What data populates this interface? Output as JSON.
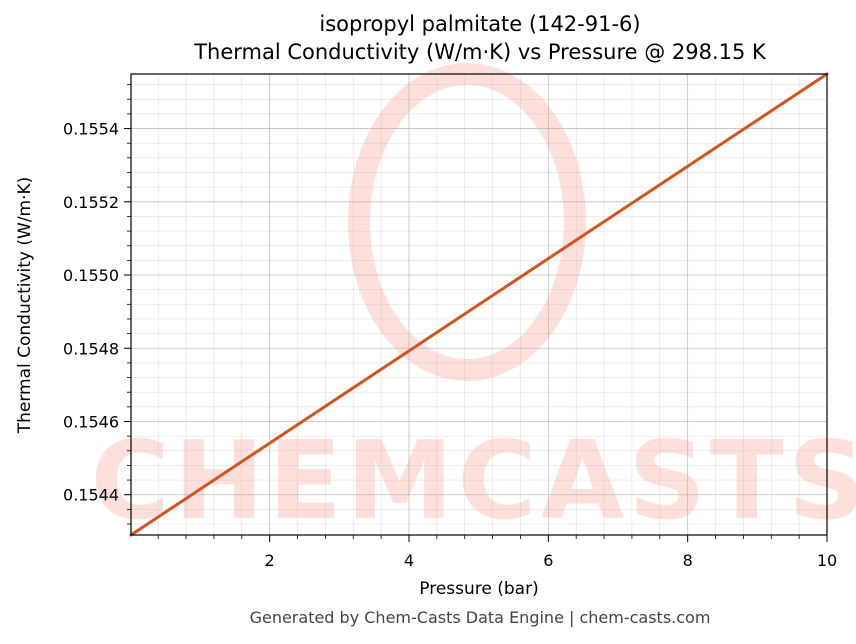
{
  "title_line1": "isopropyl palmitate (142-91-6)",
  "title_line2": "Thermal Conductivity (W/m·K) vs Pressure @ 298.15 K",
  "footer": "Generated by Chem-Casts Data Engine | chem-casts.com",
  "watermark_text": "CHEMCASTS",
  "colors": {
    "line": "#d4541f",
    "watermark": "#fde0dc",
    "grid": "#b0b0b0"
  },
  "chart_data": {
    "type": "line",
    "xlabel": "Pressure (bar)",
    "ylabel": "Thermal Conductivity (W/m·K)",
    "xlim": [
      0.01,
      10
    ],
    "ylim": [
      0.15429,
      0.155549
    ],
    "xticks": [
      2,
      4,
      6,
      8,
      10
    ],
    "xtick_labels": [
      "2",
      "4",
      "6",
      "8",
      "10"
    ],
    "yticks": [
      0.1544,
      0.1546,
      0.1548,
      0.155,
      0.1552,
      0.1554
    ],
    "ytick_labels": [
      "0.1544",
      "0.1546",
      "0.1548",
      "0.1550",
      "0.1552",
      "0.1554"
    ],
    "grid": true,
    "series": [
      {
        "x": [
          0.01,
          10
        ],
        "y": [
          0.15429,
          0.155549
        ]
      }
    ]
  }
}
